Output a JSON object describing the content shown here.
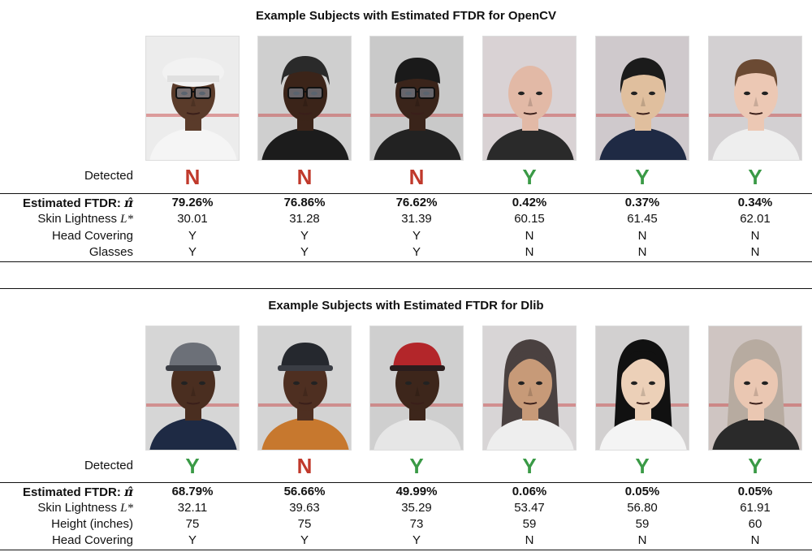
{
  "panels": [
    {
      "title": "Example Subjects with Estimated FTDR for OpenCV",
      "labels": {
        "detected": "Detected",
        "ftdr": "Estimated FTDR: ",
        "ftdr_symbol": "π̂",
        "skin": "Skin Lightness ",
        "skin_symbol": "L*",
        "row3": "Head Covering",
        "row4": "Glasses"
      },
      "subjects": [
        {
          "detected": "N",
          "ftdr": "79.26%",
          "skin": "30.01",
          "row3": "Y",
          "row4": "Y"
        },
        {
          "detected": "N",
          "ftdr": "76.86%",
          "skin": "31.28",
          "row3": "Y",
          "row4": "Y"
        },
        {
          "detected": "N",
          "ftdr": "76.62%",
          "skin": "31.39",
          "row3": "Y",
          "row4": "Y"
        },
        {
          "detected": "Y",
          "ftdr": "0.42%",
          "skin": "60.15",
          "row3": "N",
          "row4": "N"
        },
        {
          "detected": "Y",
          "ftdr": "0.37%",
          "skin": "61.45",
          "row3": "N",
          "row4": "N"
        },
        {
          "detected": "Y",
          "ftdr": "0.34%",
          "skin": "62.01",
          "row3": "N",
          "row4": "N"
        }
      ]
    },
    {
      "title": "Example Subjects with Estimated FTDR for Dlib",
      "labels": {
        "detected": "Detected",
        "ftdr": "Estimated FTDR: ",
        "ftdr_symbol": "π̂",
        "skin": "Skin Lightness ",
        "skin_symbol": "L*",
        "row3": "Height (inches)",
        "row4": "Head Covering"
      },
      "subjects": [
        {
          "detected": "Y",
          "ftdr": "68.79%",
          "skin": "32.11",
          "row3": "75",
          "row4": "Y"
        },
        {
          "detected": "N",
          "ftdr": "56.66%",
          "skin": "39.63",
          "row3": "75",
          "row4": "Y"
        },
        {
          "detected": "Y",
          "ftdr": "49.99%",
          "skin": "35.29",
          "row3": "73",
          "row4": "Y"
        },
        {
          "detected": "Y",
          "ftdr": "0.06%",
          "skin": "53.47",
          "row3": "59",
          "row4": "N"
        },
        {
          "detected": "Y",
          "ftdr": "0.05%",
          "skin": "56.80",
          "row3": "59",
          "row4": "N"
        },
        {
          "detected": "Y",
          "ftdr": "0.05%",
          "skin": "61.91",
          "row3": "60",
          "row4": "N"
        }
      ]
    }
  ],
  "colors": {
    "yes": "#3a9a46",
    "no": "#c0392b"
  }
}
